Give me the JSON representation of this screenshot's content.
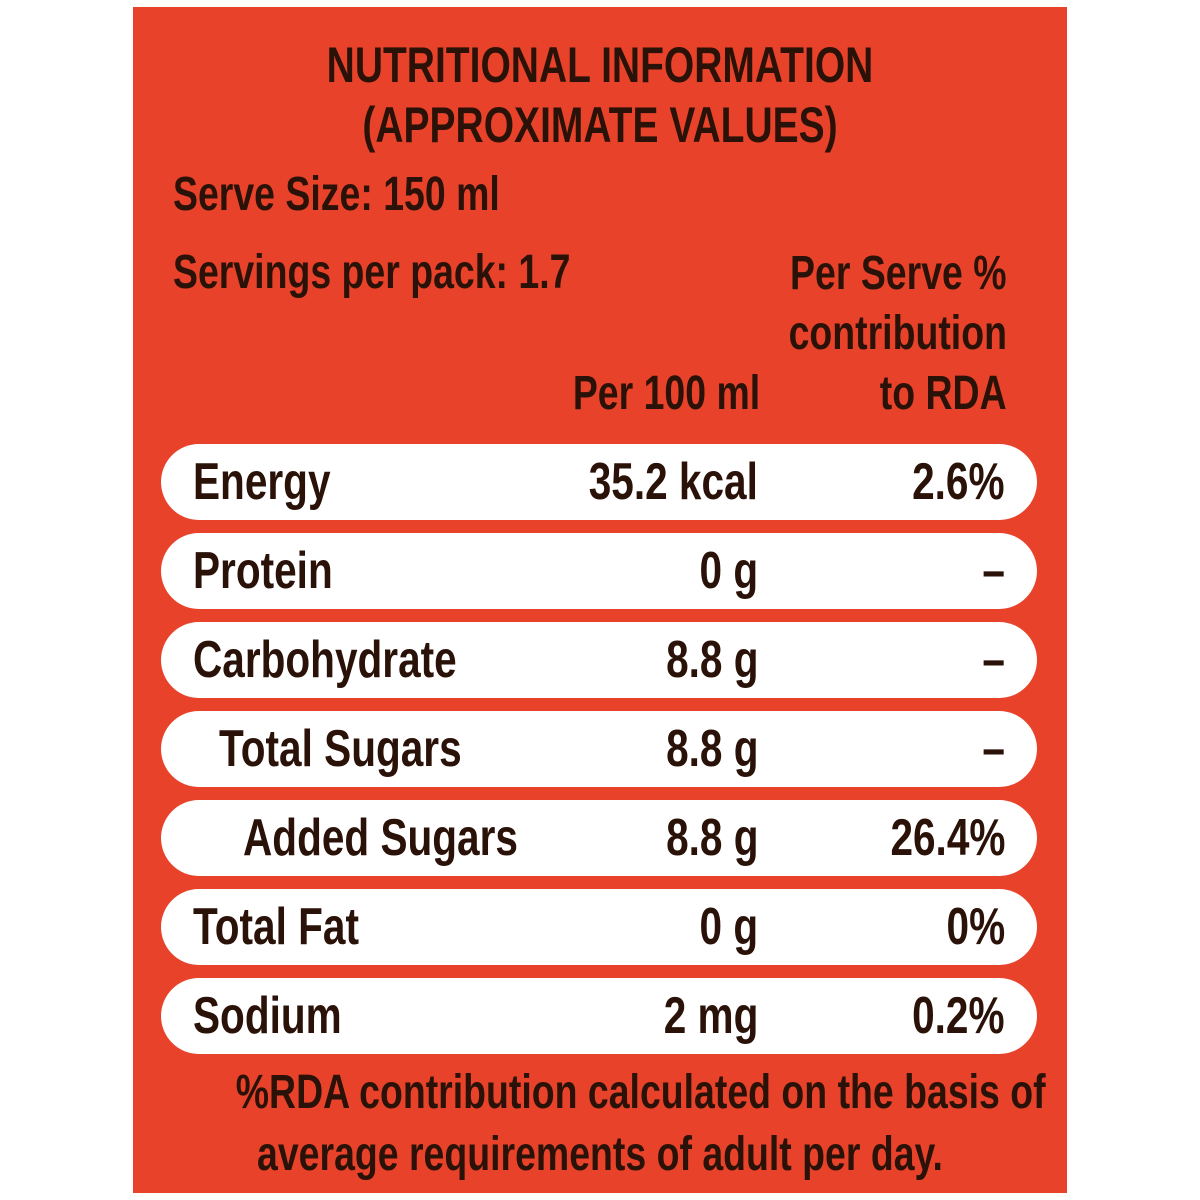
{
  "colors": {
    "panel_background": "#e8432a",
    "row_background": "#ffffff",
    "text": "#2a1208"
  },
  "title": {
    "line1": "NUTRITIONAL INFORMATION",
    "line2": "(APPROXIMATE VALUES)"
  },
  "serve_size": "Serve Size: 150 ml",
  "servings_per_pack": "Servings per pack: 1.7",
  "columns": {
    "per_100": "Per 100 ml",
    "rda_line1": "Per Serve %",
    "rda_line2": "contribution",
    "rda_line3": "to RDA"
  },
  "rows": [
    {
      "name": "Energy",
      "per_100": "35.2 kcal",
      "rda": "2.6%"
    },
    {
      "name": "Protein",
      "per_100": "0 g",
      "rda": "–"
    },
    {
      "name": "Carbohydrate",
      "per_100": "8.8 g",
      "rda": "–"
    },
    {
      "name": "Total Sugars",
      "per_100": "8.8 g",
      "rda": "–"
    },
    {
      "name": "Added Sugars",
      "per_100": "8.8 g",
      "rda": "26.4%"
    },
    {
      "name": "Total Fat",
      "per_100": "0 g",
      "rda": "0%"
    },
    {
      "name": "Sodium",
      "per_100": "2 mg",
      "rda": "0.2%"
    }
  ],
  "footnote": {
    "line1": "%RDA contribution calculated on the basis of",
    "line2": "average requirements of adult per day."
  }
}
